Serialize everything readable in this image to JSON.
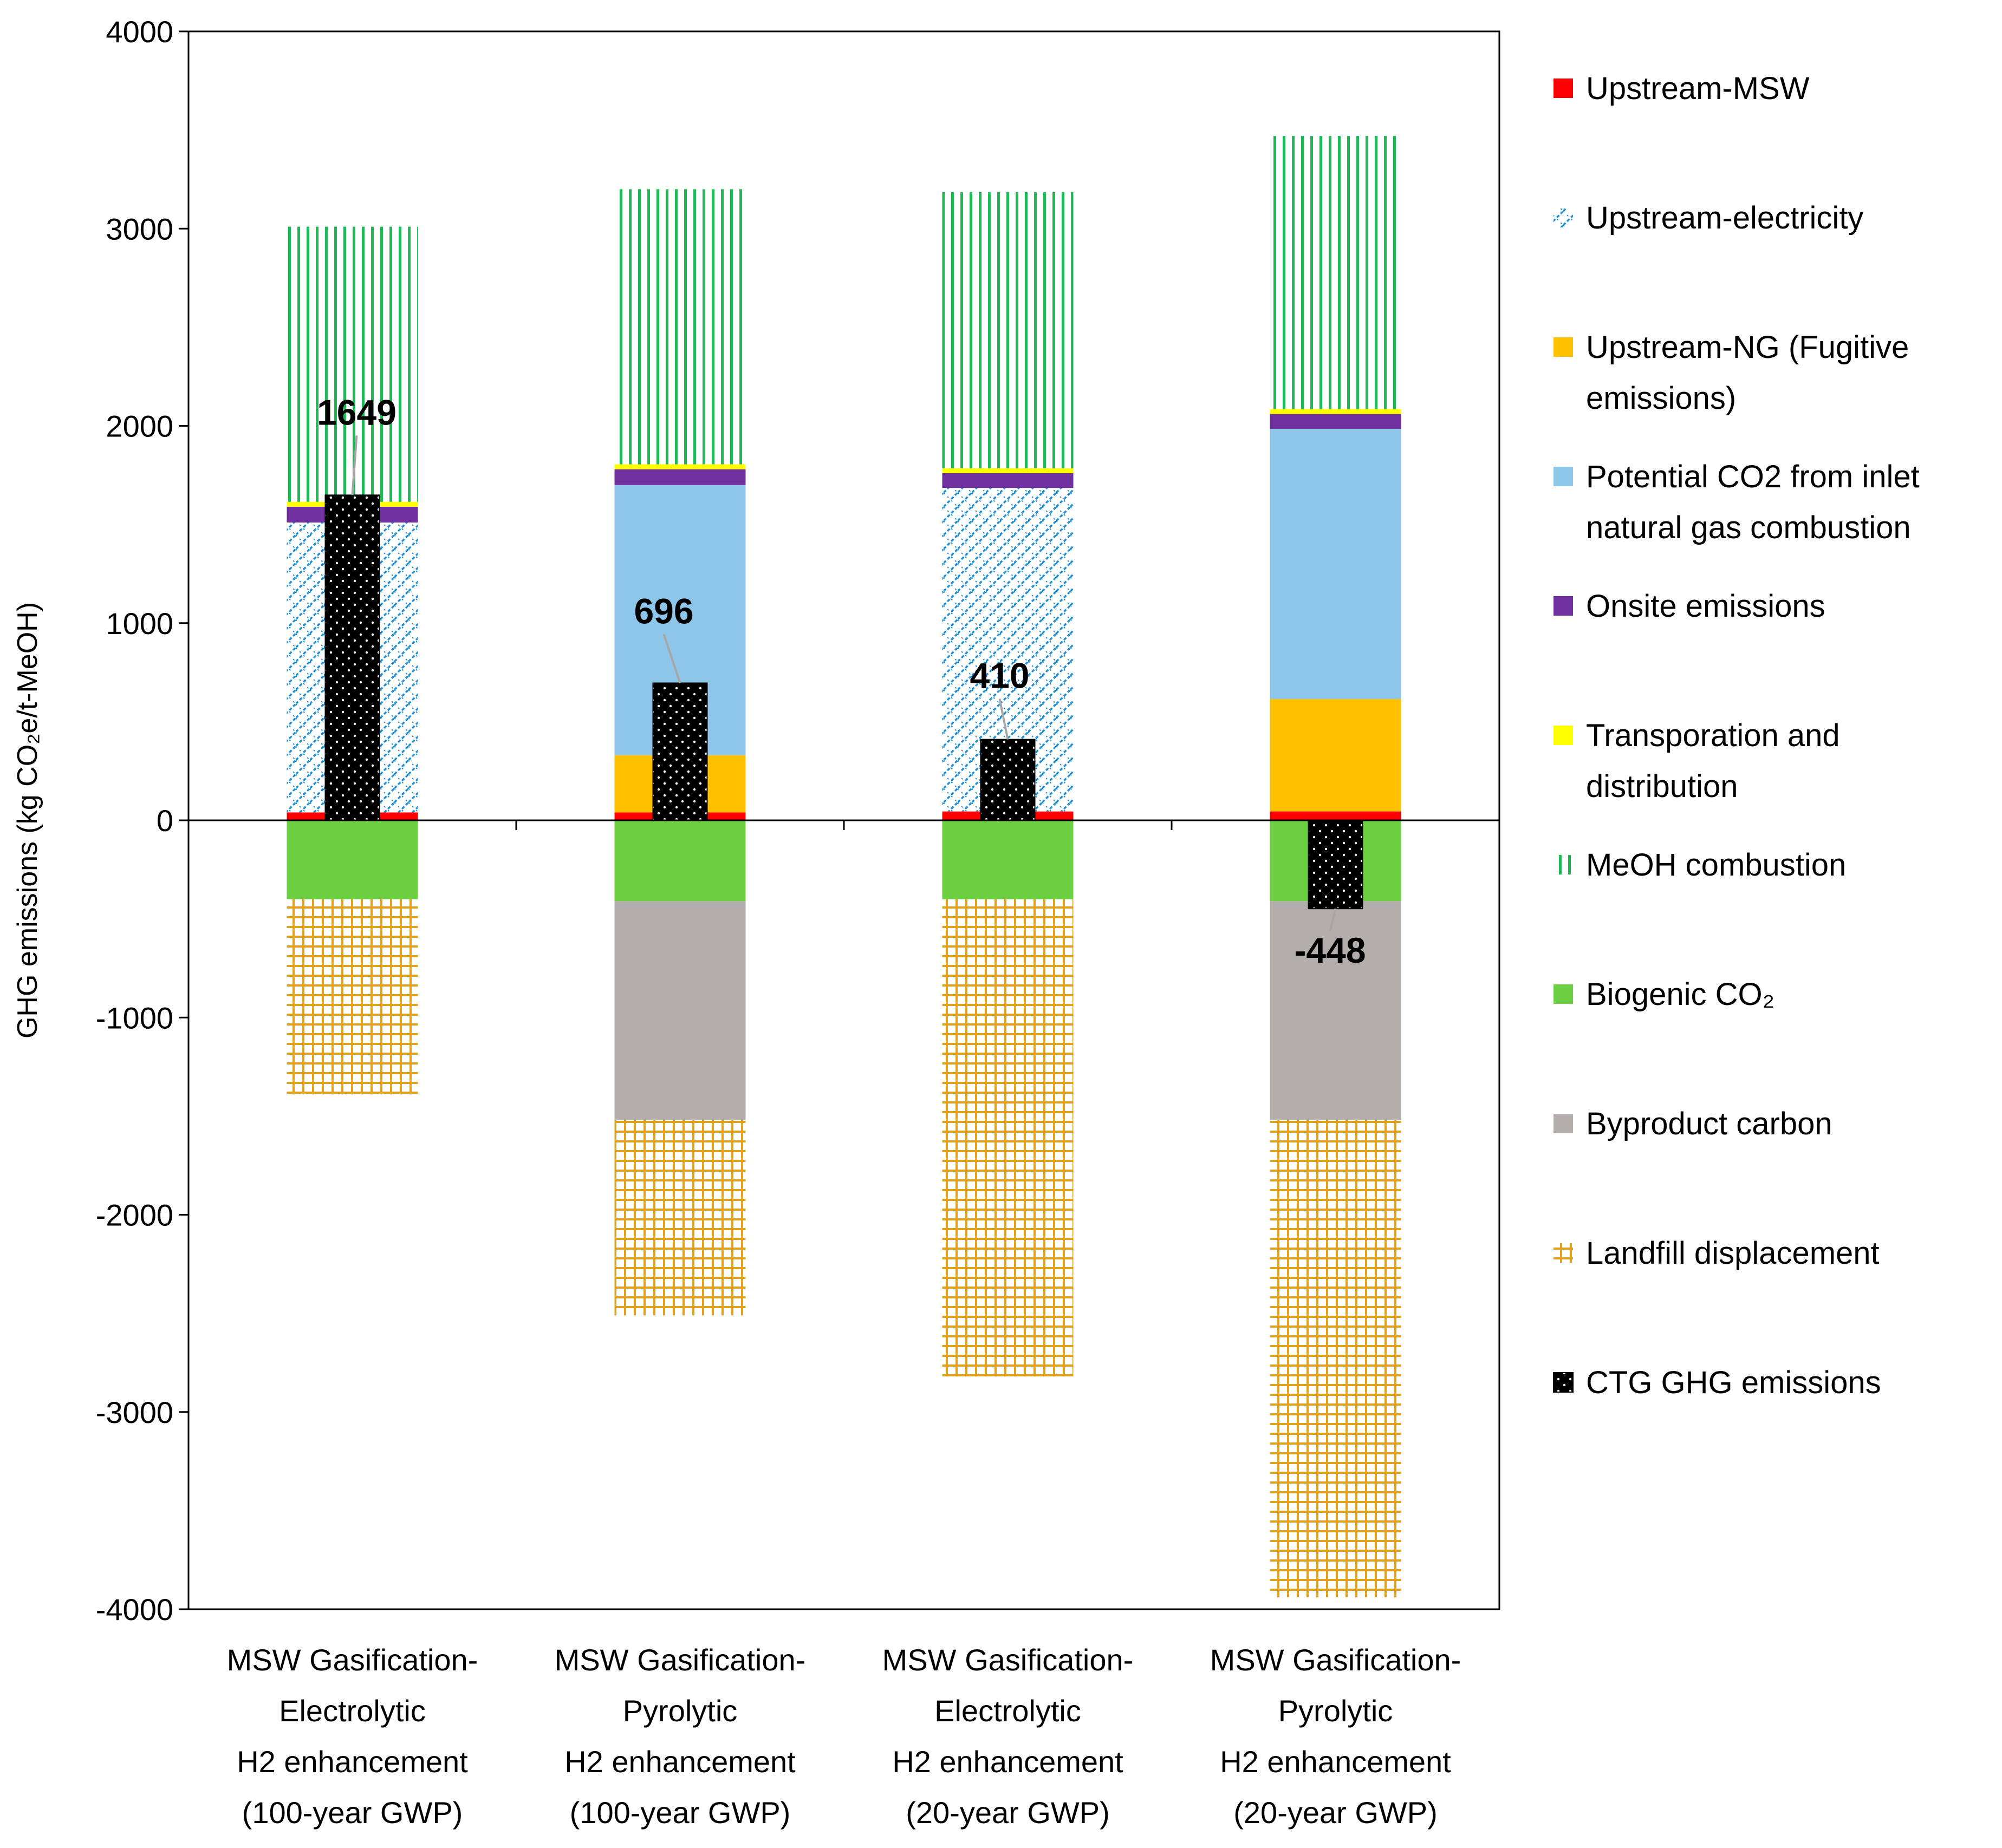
{
  "chart_data": {
    "type": "bar",
    "stacked": true,
    "title": "",
    "ylabel": "GHG emissions (kg CO₂e/t-MeOH)",
    "xlabel": "",
    "ylim": [
      -4000,
      4000
    ],
    "yticks": [
      4000,
      3000,
      2000,
      1000,
      0,
      -1000,
      -2000,
      -3000,
      -4000
    ],
    "grid": false,
    "legend_position": "right",
    "categories": [
      [
        "MSW Gasification-",
        "Electrolytic",
        "H2 enhancement",
        "(100-year GWP)"
      ],
      [
        "MSW Gasification-",
        "Pyrolytic",
        "H2 enhancement",
        "(100-year GWP)"
      ],
      [
        "MSW Gasification-",
        "Electrolytic",
        "H2 enhancement",
        "(20-year GWP)"
      ],
      [
        "MSW Gasification-",
        "Pyrolytic",
        "H2 enhancement",
        "(20-year GWP)"
      ]
    ],
    "series": [
      {
        "name": "Upstream-MSW",
        "legend_lines": [
          "Upstream-MSW"
        ],
        "pattern": "solid",
        "color": "#FF0000",
        "values": [
          40,
          40,
          45,
          45
        ]
      },
      {
        "name": "Upstream-electricity",
        "legend_lines": [
          "Upstream-electricity"
        ],
        "pattern": "diag",
        "color": "#1F8FD6",
        "values": [
          1470,
          0,
          1640,
          0
        ]
      },
      {
        "name": "Upstream-NG (Fugitive emissions)",
        "legend_lines": [
          "Upstream-NG (Fugitive",
          "emissions)"
        ],
        "pattern": "solid",
        "color": "#FFC000",
        "values": [
          0,
          290,
          0,
          570
        ]
      },
      {
        "name": "Potential CO2 from inlet natural gas combustion",
        "legend_lines": [
          "Potential CO2 from inlet",
          "natural gas combustion"
        ],
        "pattern": "solid",
        "color": "#8EC6EA",
        "values": [
          0,
          1370,
          0,
          1370
        ]
      },
      {
        "name": "Onsite emissions",
        "legend_lines": [
          "Onsite emissions"
        ],
        "pattern": "solid",
        "color": "#7030A0",
        "values": [
          80,
          80,
          75,
          75
        ]
      },
      {
        "name": "Transporation and distribution",
        "legend_lines": [
          "Transporation and",
          "distribution"
        ],
        "pattern": "solid",
        "color": "#FFFF00",
        "values": [
          25,
          25,
          25,
          25
        ]
      },
      {
        "name": "MeOH combustion",
        "legend_lines": [
          "MeOH combustion"
        ],
        "pattern": "vert",
        "color": "#1DB954",
        "values": [
          1395,
          1395,
          1400,
          1385
        ]
      },
      {
        "name": "Biogenic CO₂",
        "legend_lines": [
          "Biogenic CO₂"
        ],
        "pattern": "solid",
        "color": "#6CD042",
        "values": [
          -400,
          -410,
          -400,
          -410
        ]
      },
      {
        "name": "Byproduct carbon",
        "legend_lines": [
          "Byproduct carbon"
        ],
        "pattern": "solid",
        "color": "#B3ADAC",
        "values": [
          0,
          -1110,
          0,
          -1110
        ]
      },
      {
        "name": "Landfill displacement",
        "legend_lines": [
          "Landfill displacement"
        ],
        "pattern": "grid",
        "color": "#E0A21E",
        "values": [
          -990,
          -990,
          -2420,
          -2420
        ]
      }
    ],
    "net": {
      "name": "CTG GHG emissions",
      "legend_lines": [
        "CTG GHG emissions"
      ],
      "color": "#000000",
      "values": [
        1649,
        696,
        410,
        -448
      ],
      "labels": [
        "1649",
        "696",
        "410",
        "-448"
      ]
    }
  }
}
